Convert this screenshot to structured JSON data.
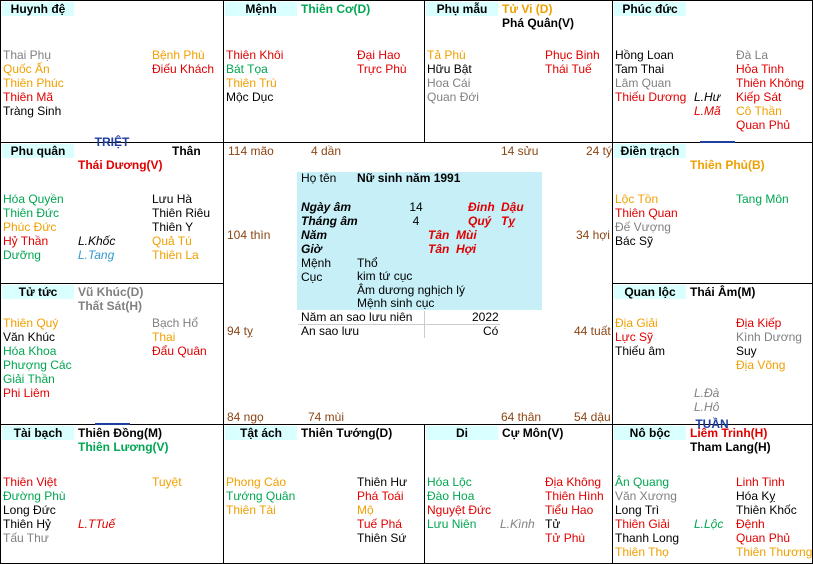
{
  "palette": {
    "r": "#e00000",
    "g": "#00a651",
    "o": "#f0a000",
    "k": "#000000",
    "s": "#808080",
    "b": "#3399cc"
  },
  "palaces": [
    {
      "name": "Huynh đệ",
      "main": [],
      "left": [
        {
          "t": "Thai Phụ",
          "c": "s"
        },
        {
          "t": "Quốc Ấn",
          "c": "o"
        },
        {
          "t": "Thiên Phúc",
          "c": "o"
        },
        {
          "t": "Thiên Mã",
          "c": "r"
        },
        {
          "t": "Tràng Sinh",
          "c": "k"
        }
      ],
      "mid": [],
      "right": [
        {
          "t": "Bệnh Phù",
          "c": "o"
        },
        {
          "t": "Điếu Khách",
          "c": "r"
        }
      ]
    },
    {
      "name": "Mệnh",
      "main": [
        {
          "t": "Thiên Cơ(D)",
          "c": "g"
        }
      ],
      "left": [
        {
          "t": "Thiên Khôi",
          "c": "r"
        },
        {
          "t": "Bát Tọa",
          "c": "g"
        },
        {
          "t": "Thiên Trù",
          "c": "o"
        },
        {
          "t": "Mộc Dục",
          "c": "k"
        }
      ],
      "mid": [],
      "right": [
        {
          "t": "Đại Hao",
          "c": "r"
        },
        {
          "t": "Trực Phù",
          "c": "r"
        }
      ]
    },
    {
      "name": "Phụ mẫu",
      "main": [
        {
          "t": "Tử Vi (D)",
          "c": "o"
        },
        {
          "t": "Phá Quân(V)",
          "c": "k"
        }
      ],
      "left": [
        {
          "t": "Tả Phù",
          "c": "o"
        },
        {
          "t": "Hữu Bật",
          "c": "k"
        },
        {
          "t": "Hoa Cái",
          "c": "s"
        },
        {
          "t": "Quan Đới",
          "c": "s"
        }
      ],
      "mid": [],
      "right": [
        {
          "t": "Phục Binh",
          "c": "r"
        },
        {
          "t": "Thái Tuế",
          "c": "r"
        }
      ]
    },
    {
      "name": "Phúc đức",
      "main": [],
      "left": [
        {
          "t": "Hồng Loan",
          "c": "k"
        },
        {
          "t": "Tam Thai",
          "c": "k"
        },
        {
          "t": "Lâm Quan",
          "c": "s"
        },
        {
          "t": "Thiếu Dương",
          "c": "r"
        }
      ],
      "mid": [
        {
          "t": "L.Hư",
          "c": "k",
          "i": true
        },
        {
          "t": "L.Mã",
          "c": "r",
          "i": true
        }
      ],
      "right": [
        {
          "t": "Đà La",
          "c": "s"
        },
        {
          "t": "Hỏa Tinh",
          "c": "r"
        },
        {
          "t": "Thiên Không",
          "c": "r"
        },
        {
          "t": "Kiếp Sát",
          "c": "r"
        },
        {
          "t": "Cô Thần",
          "c": "o"
        },
        {
          "t": "Quan Phủ",
          "c": "r"
        }
      ]
    },
    {
      "name": "Phu quân",
      "extra": "Thân",
      "main": [
        {
          "t": "Thái Dương(V)",
          "c": "r"
        }
      ],
      "left": [
        {
          "t": "Hóa Quyền",
          "c": "g"
        },
        {
          "t": "Thiên Đức",
          "c": "g"
        },
        {
          "t": "Phúc Đức",
          "c": "o"
        },
        {
          "t": "Hỷ Thần",
          "c": "r"
        },
        {
          "t": "Dưỡng",
          "c": "g"
        }
      ],
      "mid": [
        {
          "t": "L.Khốc",
          "c": "k",
          "i": true
        },
        {
          "t": "L.Tang",
          "c": "b",
          "i": true
        }
      ],
      "right": [
        {
          "t": "Lưu Hà",
          "c": "k"
        },
        {
          "t": "Thiên Riêu",
          "c": "k"
        },
        {
          "t": "Thiên Y",
          "c": "k"
        },
        {
          "t": "Quả Tú",
          "c": "o"
        },
        {
          "t": "Thiên La",
          "c": "o"
        }
      ]
    },
    {
      "name": "Điền trạch",
      "main": [
        {
          "t": "Thiên Phủ(B)",
          "c": "o"
        }
      ],
      "left": [
        {
          "t": "Lộc Tồn",
          "c": "o"
        },
        {
          "t": "Thiên Quan",
          "c": "r"
        },
        {
          "t": "Đế Vượng",
          "c": "s"
        },
        {
          "t": "Bác Sỹ",
          "c": "k"
        }
      ],
      "mid": [],
      "right": [
        {
          "t": "Tang Môn",
          "c": "g"
        }
      ]
    },
    {
      "name": "Tử tức",
      "main": [
        {
          "t": "Vũ Khúc(D)",
          "c": "s"
        },
        {
          "t": "Thất Sát(H)",
          "c": "s"
        }
      ],
      "left": [
        {
          "t": "Thiên Quý",
          "c": "o"
        },
        {
          "t": "Văn Khúc",
          "c": "k"
        },
        {
          "t": "Hóa Khoa",
          "c": "g"
        },
        {
          "t": "Phượng Các",
          "c": "g"
        },
        {
          "t": "Giải Thần",
          "c": "g"
        },
        {
          "t": "Phi Liêm",
          "c": "r"
        }
      ],
      "mid": [],
      "right": [
        {
          "t": "Bạch Hổ",
          "c": "s"
        },
        {
          "t": "Thai",
          "c": "o"
        },
        {
          "t": "Đẩu Quân",
          "c": "r"
        }
      ]
    },
    {
      "name": "Quan lộc",
      "main": [
        {
          "t": "Thái Âm(M)",
          "c": "k"
        }
      ],
      "left": [
        {
          "t": "Địa Giải",
          "c": "o"
        },
        {
          "t": "Lực Sỹ",
          "c": "r"
        },
        {
          "t": "Thiếu âm",
          "c": "k"
        }
      ],
      "mid": [
        {
          "t": "L.Đà",
          "c": "s",
          "i": true
        },
        {
          "t": "L.Hô",
          "c": "s",
          "i": true
        }
      ],
      "right": [
        {
          "t": "Địa Kiếp",
          "c": "r"
        },
        {
          "t": "Kình Dương",
          "c": "s"
        },
        {
          "t": "Suy",
          "c": "k"
        },
        {
          "t": "Địa Võng",
          "c": "o"
        }
      ]
    },
    {
      "name": "Tài bạch",
      "main": [
        {
          "t": "Thiên Đồng(M)",
          "c": "k"
        },
        {
          "t": "Thiên Lương(V)",
          "c": "g"
        }
      ],
      "left": [
        {
          "t": "Thiên Việt",
          "c": "r"
        },
        {
          "t": "Đường Phù",
          "c": "g"
        },
        {
          "t": "Long Đức",
          "c": "k"
        },
        {
          "t": "Thiên Hỷ",
          "c": "k"
        },
        {
          "t": "Tấu Thư",
          "c": "s"
        }
      ],
      "mid": [
        {
          "t": "L.TTuế",
          "c": "r",
          "i": true
        }
      ],
      "right": [
        {
          "t": "Tuyệt",
          "c": "o"
        }
      ]
    },
    {
      "name": "Tật ách",
      "main": [
        {
          "t": "Thiên Tướng(D)",
          "c": "k"
        }
      ],
      "left": [
        {
          "t": "Phong Cáo",
          "c": "o"
        },
        {
          "t": "Tướng Quân",
          "c": "g"
        },
        {
          "t": "Thiên Tài",
          "c": "o"
        }
      ],
      "mid": [],
      "right": [
        {
          "t": "Thiên Hư",
          "c": "k"
        },
        {
          "t": "Phá Toái",
          "c": "r"
        },
        {
          "t": "Mộ",
          "c": "o"
        },
        {
          "t": "Tuế Phá",
          "c": "r"
        },
        {
          "t": "Thiên Sứ",
          "c": "k"
        }
      ]
    },
    {
      "name": "Di",
      "main": [
        {
          "t": "Cự Môn(V)",
          "c": "k"
        }
      ],
      "left": [
        {
          "t": "Hóa Lộc",
          "c": "g"
        },
        {
          "t": "Đào Hoa",
          "c": "g"
        },
        {
          "t": "Nguyệt Đức",
          "c": "r"
        },
        {
          "t": "Lưu Niên",
          "c": "g"
        }
      ],
      "mid": [
        {
          "t": "L.Kình",
          "c": "s",
          "i": true
        }
      ],
      "right": [
        {
          "t": "Địa Không",
          "c": "r"
        },
        {
          "t": "Thiên Hình",
          "c": "r"
        },
        {
          "t": "Tiểu Hao",
          "c": "r"
        },
        {
          "t": "Tử",
          "c": "k"
        },
        {
          "t": "Tử Phù",
          "c": "r"
        }
      ]
    },
    {
      "name": "Nô bộc",
      "main": [
        {
          "t": "Liêm Trinh(H)",
          "c": "r"
        },
        {
          "t": "Tham Lang(H)",
          "c": "k"
        }
      ],
      "left": [
        {
          "t": "Ân Quang",
          "c": "g"
        },
        {
          "t": "Văn Xương",
          "c": "s"
        },
        {
          "t": "Long Trì",
          "c": "k"
        },
        {
          "t": "Thiên Giải",
          "c": "r"
        },
        {
          "t": "Thanh Long",
          "c": "k"
        },
        {
          "t": "Thiên Thọ",
          "c": "o"
        }
      ],
      "mid": [
        {
          "t": "L.Lộc",
          "c": "g",
          "i": true
        }
      ],
      "right": [
        {
          "t": "Linh Tinh",
          "c": "r"
        },
        {
          "t": "Hóa Kỵ",
          "c": "k"
        },
        {
          "t": "Thiên Khốc",
          "c": "k"
        },
        {
          "t": "Đệnh",
          "c": "r"
        },
        {
          "t": "Quan Phủ",
          "c": "r"
        },
        {
          "t": "Thiên Thương",
          "c": "o"
        }
      ]
    }
  ],
  "ages": [
    "114 mão",
    "4 dần",
    "14 sửu",
    "24 tý",
    "104 thìn",
    "34 hợi",
    "94 tỵ",
    "44 tuất",
    "84 ngọ",
    "74 mùi",
    "64 thân",
    "54 dậu"
  ],
  "center": {
    "name_label": "Họ tên",
    "name": "Nữ sinh năm 1991",
    "rows": [
      {
        "label": "Ngày âm",
        "num": "14",
        "can": "Đinh",
        "chi": "Dậu"
      },
      {
        "label": "Tháng âm",
        "num": "4",
        "can": "Quý",
        "chi": "Tỵ"
      },
      {
        "label": "Năm",
        "can": "Tân",
        "chi": "Mùi"
      },
      {
        "label": "Giờ",
        "can": "Tân",
        "chi": "Hợi"
      }
    ],
    "menh_label": "Mệnh",
    "cuc_label": "Cục",
    "menh": "Thổ",
    "cuc": "kim tứ cục",
    "am_duong": "Âm dương nghịch lý",
    "menh_sinh": "Mệnh sinh cục",
    "luu_nien_label": "Năm an sao lưu niên",
    "luu_nien": "2022",
    "an_sao_label": "An sao lưu",
    "an_sao": "Có"
  },
  "marks": {
    "triet": "TRIỆT",
    "tuan": "TUẦN"
  }
}
